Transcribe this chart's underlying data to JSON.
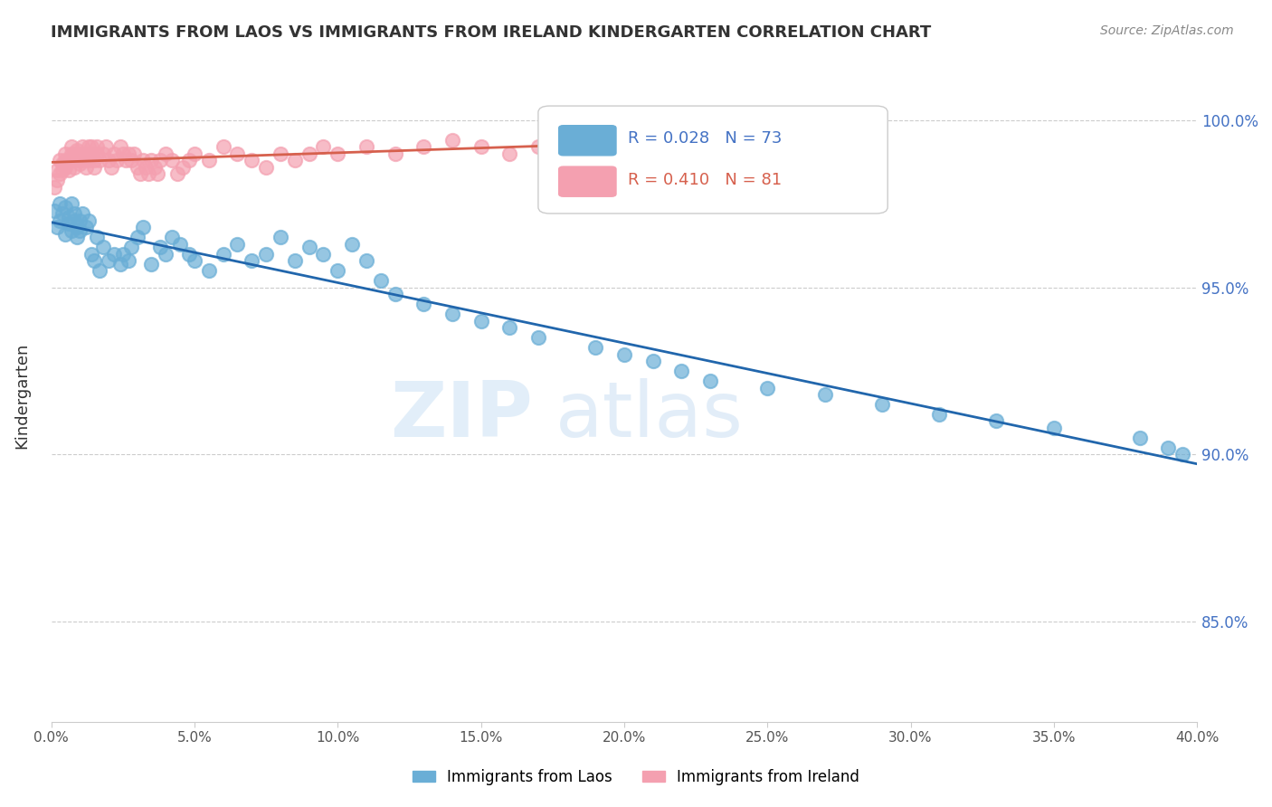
{
  "title": "IMMIGRANTS FROM LAOS VS IMMIGRANTS FROM IRELAND KINDERGARTEN CORRELATION CHART",
  "source": "Source: ZipAtlas.com",
  "ylabel": "Kindergarten",
  "ytick_labels": [
    "100.0%",
    "95.0%",
    "90.0%",
    "85.0%"
  ],
  "ytick_values": [
    1.0,
    0.95,
    0.9,
    0.85
  ],
  "xlim": [
    0.0,
    0.4
  ],
  "ylim": [
    0.82,
    1.015
  ],
  "legend_laos_R": "0.028",
  "legend_laos_N": "73",
  "legend_ireland_R": "0.410",
  "legend_ireland_N": "81",
  "color_laos": "#6aaed6",
  "color_ireland": "#f4a0b0",
  "color_laos_line": "#2166ac",
  "color_ireland_line": "#d6604d",
  "watermark_zip": "ZIP",
  "watermark_atlas": "atlas",
  "background": "#ffffff",
  "laos_x": [
    0.001,
    0.002,
    0.003,
    0.003,
    0.004,
    0.005,
    0.005,
    0.006,
    0.006,
    0.007,
    0.007,
    0.008,
    0.008,
    0.009,
    0.009,
    0.01,
    0.01,
    0.011,
    0.012,
    0.013,
    0.014,
    0.015,
    0.016,
    0.017,
    0.018,
    0.02,
    0.022,
    0.024,
    0.025,
    0.027,
    0.028,
    0.03,
    0.032,
    0.035,
    0.038,
    0.04,
    0.042,
    0.045,
    0.048,
    0.05,
    0.055,
    0.06,
    0.065,
    0.07,
    0.075,
    0.08,
    0.085,
    0.09,
    0.095,
    0.1,
    0.105,
    0.11,
    0.115,
    0.12,
    0.13,
    0.14,
    0.15,
    0.16,
    0.17,
    0.19,
    0.2,
    0.21,
    0.22,
    0.23,
    0.25,
    0.27,
    0.29,
    0.31,
    0.33,
    0.35,
    0.38,
    0.39,
    0.395
  ],
  "laos_y": [
    0.973,
    0.968,
    0.975,
    0.97,
    0.972,
    0.966,
    0.974,
    0.969,
    0.971,
    0.967,
    0.975,
    0.97,
    0.972,
    0.968,
    0.965,
    0.97,
    0.967,
    0.972,
    0.968,
    0.97,
    0.96,
    0.958,
    0.965,
    0.955,
    0.962,
    0.958,
    0.96,
    0.957,
    0.96,
    0.958,
    0.962,
    0.965,
    0.968,
    0.957,
    0.962,
    0.96,
    0.965,
    0.963,
    0.96,
    0.958,
    0.955,
    0.96,
    0.963,
    0.958,
    0.96,
    0.965,
    0.958,
    0.962,
    0.96,
    0.955,
    0.963,
    0.958,
    0.952,
    0.948,
    0.945,
    0.942,
    0.94,
    0.938,
    0.935,
    0.932,
    0.93,
    0.928,
    0.925,
    0.922,
    0.92,
    0.918,
    0.915,
    0.912,
    0.91,
    0.908,
    0.905,
    0.902,
    0.9
  ],
  "ireland_x": [
    0.001,
    0.002,
    0.002,
    0.003,
    0.003,
    0.004,
    0.004,
    0.005,
    0.005,
    0.005,
    0.006,
    0.006,
    0.007,
    0.007,
    0.007,
    0.008,
    0.008,
    0.009,
    0.009,
    0.01,
    0.01,
    0.011,
    0.011,
    0.012,
    0.012,
    0.013,
    0.013,
    0.014,
    0.014,
    0.015,
    0.015,
    0.016,
    0.016,
    0.017,
    0.018,
    0.019,
    0.02,
    0.021,
    0.022,
    0.023,
    0.024,
    0.025,
    0.026,
    0.027,
    0.028,
    0.029,
    0.03,
    0.031,
    0.032,
    0.033,
    0.034,
    0.035,
    0.036,
    0.037,
    0.038,
    0.04,
    0.042,
    0.044,
    0.046,
    0.048,
    0.05,
    0.055,
    0.06,
    0.065,
    0.07,
    0.075,
    0.08,
    0.085,
    0.09,
    0.095,
    0.1,
    0.11,
    0.12,
    0.13,
    0.14,
    0.15,
    0.16,
    0.17,
    0.18,
    0.19,
    0.2
  ],
  "ireland_y": [
    0.98,
    0.985,
    0.982,
    0.988,
    0.984,
    0.985,
    0.987,
    0.988,
    0.99,
    0.986,
    0.988,
    0.985,
    0.99,
    0.992,
    0.988,
    0.99,
    0.986,
    0.991,
    0.988,
    0.99,
    0.987,
    0.992,
    0.988,
    0.99,
    0.986,
    0.992,
    0.988,
    0.99,
    0.992,
    0.988,
    0.986,
    0.99,
    0.992,
    0.988,
    0.99,
    0.992,
    0.988,
    0.986,
    0.99,
    0.988,
    0.992,
    0.99,
    0.988,
    0.99,
    0.988,
    0.99,
    0.986,
    0.984,
    0.988,
    0.986,
    0.984,
    0.988,
    0.986,
    0.984,
    0.988,
    0.99,
    0.988,
    0.984,
    0.986,
    0.988,
    0.99,
    0.988,
    0.992,
    0.99,
    0.988,
    0.986,
    0.99,
    0.988,
    0.99,
    0.992,
    0.99,
    0.992,
    0.99,
    0.992,
    0.994,
    0.992,
    0.99,
    0.992,
    0.994,
    0.992,
    0.994
  ]
}
